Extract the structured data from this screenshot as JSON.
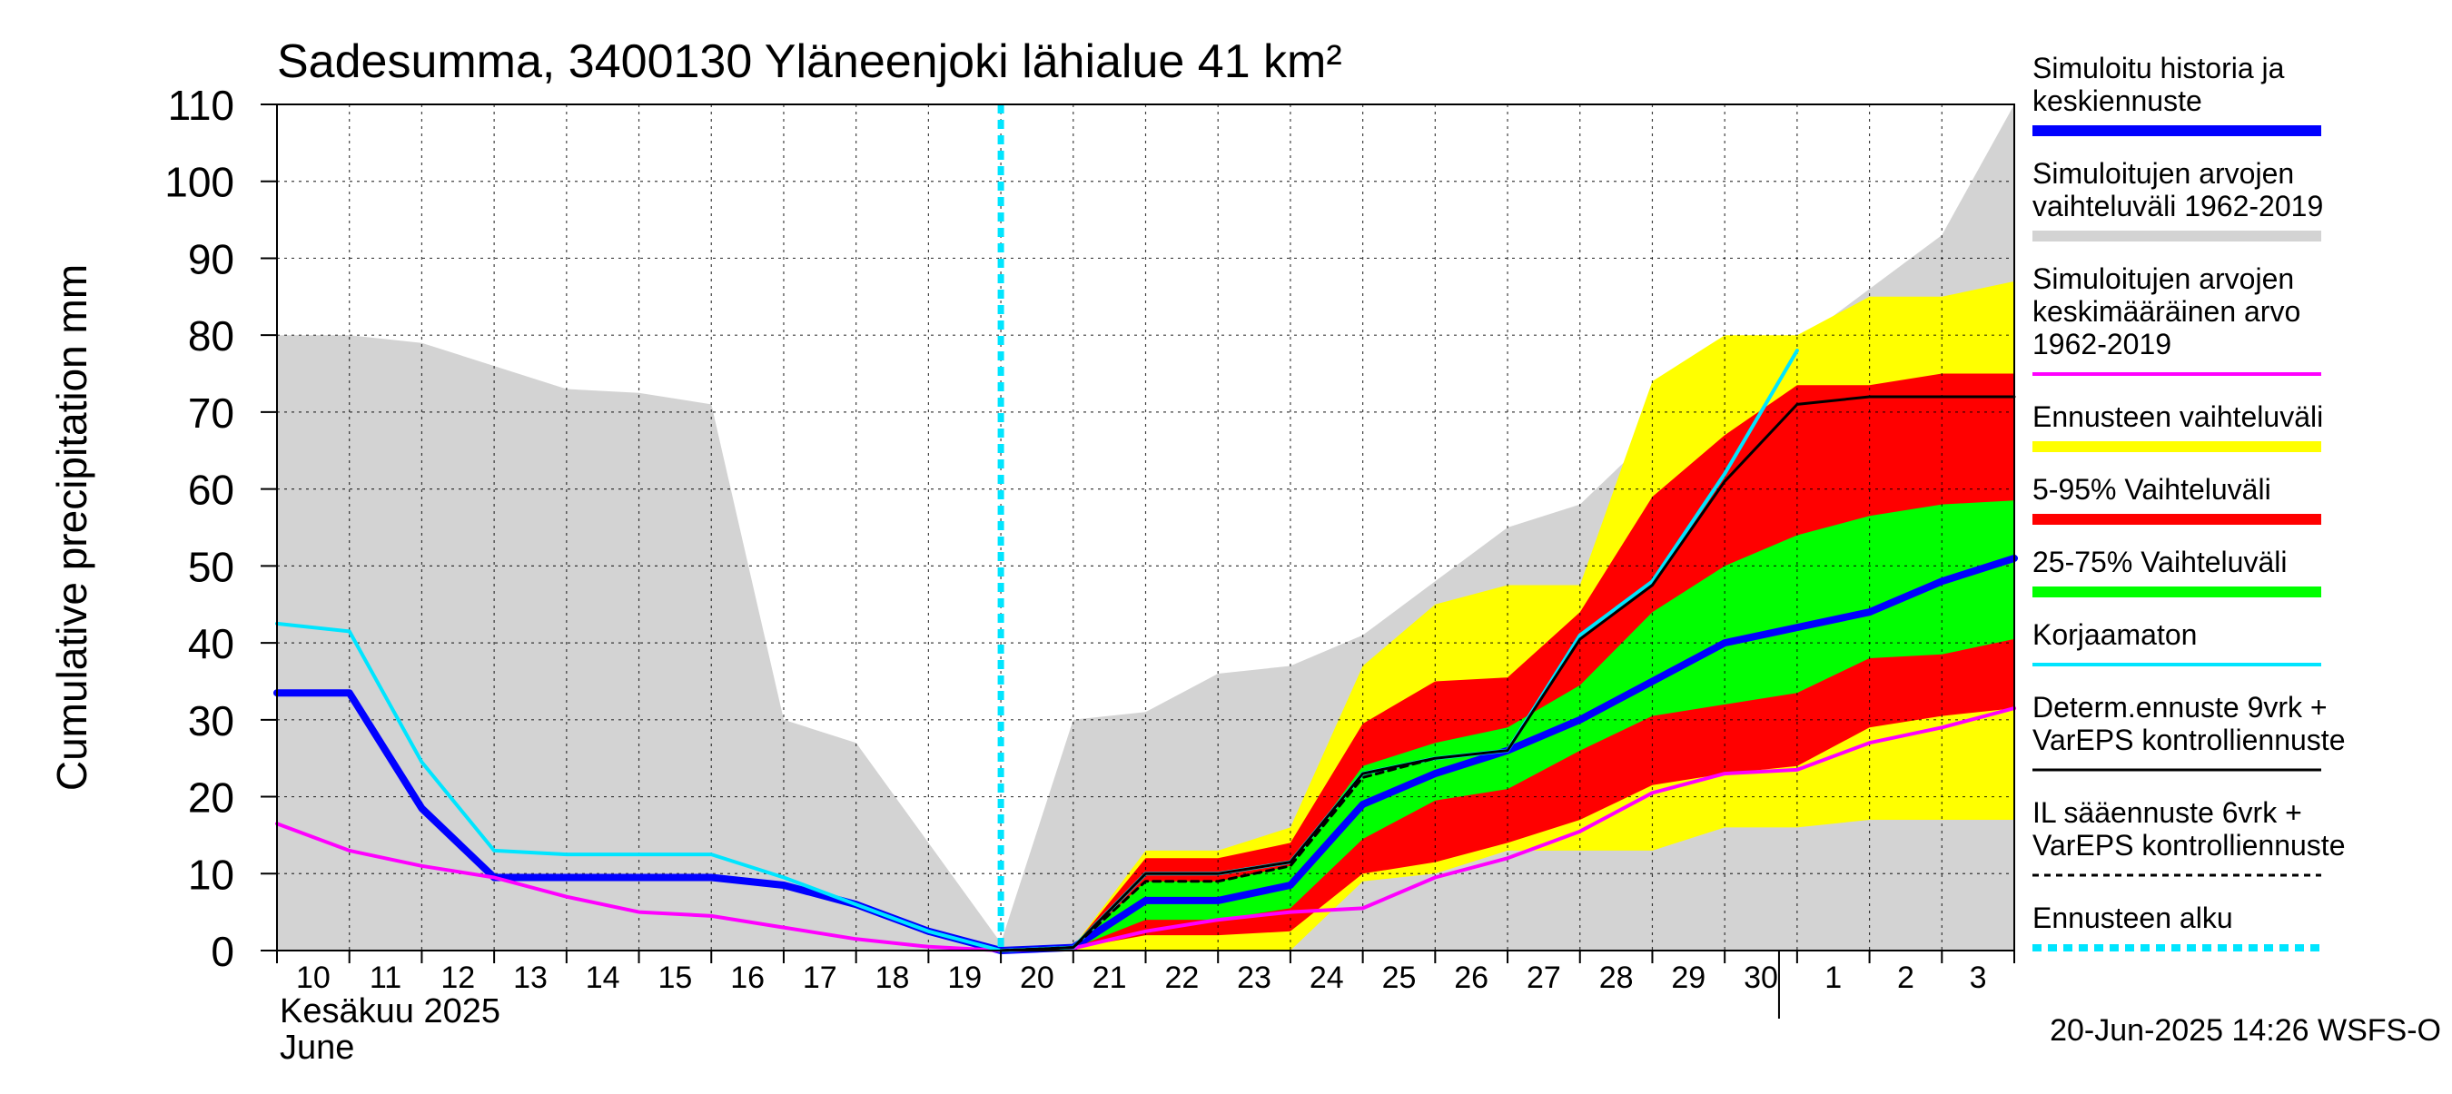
{
  "chart_data": {
    "type": "area",
    "title": "Sadesumma, 3400130 Yläneenjoki lähialue 41 km²",
    "ylabel": "Cumulative precipitation   mm",
    "ylim": [
      0,
      110
    ],
    "yticks": [
      0,
      10,
      20,
      30,
      40,
      50,
      60,
      70,
      80,
      90,
      100,
      110
    ],
    "xlim": [
      0,
      24
    ],
    "x_ticks": [
      {
        "x": 0,
        "label": "10"
      },
      {
        "x": 1,
        "label": "11"
      },
      {
        "x": 2,
        "label": "12"
      },
      {
        "x": 3,
        "label": "13"
      },
      {
        "x": 4,
        "label": "14"
      },
      {
        "x": 5,
        "label": "15"
      },
      {
        "x": 6,
        "label": "16"
      },
      {
        "x": 7,
        "label": "17"
      },
      {
        "x": 8,
        "label": "18"
      },
      {
        "x": 9,
        "label": "19"
      },
      {
        "x": 10,
        "label": "20"
      },
      {
        "x": 11,
        "label": "21"
      },
      {
        "x": 12,
        "label": "22"
      },
      {
        "x": 13,
        "label": "23"
      },
      {
        "x": 14,
        "label": "24"
      },
      {
        "x": 15,
        "label": "25"
      },
      {
        "x": 16,
        "label": "26"
      },
      {
        "x": 17,
        "label": "27"
      },
      {
        "x": 18,
        "label": "28"
      },
      {
        "x": 19,
        "label": "29"
      },
      {
        "x": 20,
        "label": "30"
      },
      {
        "x": 21,
        "label": "1"
      },
      {
        "x": 22,
        "label": "2"
      },
      {
        "x": 23,
        "label": "3"
      }
    ],
    "month_label_fi": "Kesäkuu   2025",
    "month_label_en": "June",
    "forecast_start_x": 10,
    "month_boundary_x": 20.75,
    "footer": "20-Jun-2025 14:26 WSFS-O",
    "bands": {
      "historical_range": {
        "x": [
          0,
          1,
          2,
          3,
          4,
          5,
          6,
          7,
          8,
          9,
          10,
          11,
          12,
          13,
          14,
          15,
          16,
          17,
          18,
          19,
          20,
          21,
          22,
          23,
          24
        ],
        "lower": [
          0,
          0,
          0,
          0,
          0,
          0,
          0,
          0,
          0,
          0,
          0,
          0,
          0,
          0,
          0,
          0,
          0,
          0,
          0,
          0,
          0,
          0,
          0,
          0,
          0
        ],
        "upper": [
          80,
          80,
          79,
          76,
          73,
          72.5,
          71,
          30,
          27,
          14,
          1,
          30,
          31,
          36,
          37,
          41,
          48,
          55,
          58,
          67,
          72,
          79,
          86,
          93,
          110
        ]
      },
      "ensemble_range": {
        "x": [
          11,
          12,
          13,
          14,
          15,
          16,
          17,
          18,
          19,
          20,
          21,
          22,
          23,
          24
        ],
        "lower": [
          0,
          0,
          0,
          0,
          9,
          10,
          13,
          13,
          13,
          16,
          16,
          17,
          17,
          17
        ],
        "upper": [
          0.5,
          13,
          13,
          16,
          37,
          45,
          47.5,
          47.5,
          74,
          80,
          80,
          85,
          85,
          87
        ]
      },
      "p5_95": {
        "x": [
          11,
          12,
          13,
          14,
          15,
          16,
          17,
          18,
          19,
          20,
          21,
          22,
          23,
          24
        ],
        "lower": [
          0.3,
          2,
          2,
          2.5,
          10,
          11.5,
          14,
          17,
          21.5,
          23,
          24,
          29,
          30.5,
          31.5
        ],
        "upper": [
          0.5,
          12,
          12,
          14,
          29.5,
          35,
          35.5,
          44,
          59,
          67,
          73.5,
          73.5,
          75,
          75
        ]
      },
      "p25_75": {
        "x": [
          11,
          12,
          13,
          14,
          15,
          16,
          17,
          18,
          19,
          20,
          21,
          22,
          23,
          24
        ],
        "lower": [
          0.3,
          4,
          4,
          5.5,
          14.5,
          19.5,
          21,
          26,
          30.5,
          32,
          33.5,
          38,
          38.5,
          40.5
        ],
        "upper": [
          0.4,
          9,
          9,
          11,
          24,
          27,
          29,
          34.5,
          44,
          50,
          54,
          56.5,
          58,
          58.5
        ]
      }
    },
    "series": [
      {
        "name": "Simuloitu historia ja keskiennuste",
        "color": "#0000ff",
        "width": 8,
        "x": [
          0,
          1,
          2,
          3,
          4,
          5,
          6,
          7,
          8,
          9,
          10,
          11,
          12,
          13,
          14,
          15,
          16,
          17,
          18,
          19,
          20,
          21,
          22,
          23,
          24
        ],
        "values": [
          33.5,
          33.5,
          18.5,
          9.5,
          9.5,
          9.5,
          9.5,
          8.5,
          6,
          2.5,
          0,
          0.4,
          6.5,
          6.5,
          8.5,
          19,
          23,
          26,
          30,
          35,
          40,
          42,
          44,
          48,
          51
        ]
      },
      {
        "name": "Simuloitujen arvojen keskimääräinen arvo 1962-2019",
        "color": "#ff00ff",
        "width": 4,
        "x": [
          0,
          1,
          2,
          3,
          4,
          5,
          6,
          7,
          8,
          9,
          10,
          11,
          12,
          13,
          14,
          15,
          16,
          17,
          18,
          19,
          20,
          21,
          22,
          23,
          24
        ],
        "values": [
          16.5,
          13,
          11,
          9.5,
          7,
          5,
          4.5,
          3,
          1.5,
          0.5,
          0,
          0.3,
          2.5,
          4,
          5,
          5.5,
          9.5,
          12,
          15.5,
          20.5,
          23,
          23.5,
          27,
          29,
          31.5
        ]
      },
      {
        "name": "Korjaamaton",
        "color": "#00e5ff",
        "width": 4,
        "x": [
          0,
          1,
          2,
          3,
          4,
          5,
          6,
          7,
          8,
          9,
          10,
          11,
          12,
          13,
          14,
          15,
          16,
          17,
          18,
          19,
          20,
          21
        ],
        "values": [
          42.5,
          41.5,
          24.5,
          13,
          12.5,
          12.5,
          12.5,
          9.5,
          6,
          2.5,
          0,
          0.4,
          10,
          10,
          11.5,
          23,
          25,
          26,
          41,
          48,
          62,
          78
        ]
      },
      {
        "name": "Determ.ennuste 9vrk + VarEPS kontrolliennuste",
        "color": "#000000",
        "width": 3,
        "x": [
          10,
          11,
          12,
          13,
          14,
          15,
          16,
          17,
          18,
          19,
          20,
          21,
          22,
          23,
          24
        ],
        "values": [
          0,
          0.4,
          10,
          10,
          11.5,
          23,
          25,
          26,
          40.5,
          47.5,
          61,
          71,
          72,
          72,
          72
        ]
      },
      {
        "name": "IL sääennuste 6vrk + VarEPS kontrolliennuste",
        "color": "#000000",
        "width": 3,
        "dashed": true,
        "x": [
          10,
          11,
          12,
          13,
          14,
          15,
          16
        ],
        "values": [
          0,
          0.4,
          9,
          9,
          11,
          22.5,
          25
        ]
      }
    ],
    "legend": {
      "placement": "right",
      "entries": [
        {
          "label_lines": [
            "Simuloitu historia ja",
            "keskiennuste"
          ],
          "color": "#0000ff",
          "kind": "thick"
        },
        {
          "label_lines": [
            "Simuloitujen arvojen",
            "vaihteluväli 1962-2019"
          ],
          "color": "#d3d3d3",
          "kind": "thick"
        },
        {
          "label_lines": [
            "Simuloitujen arvojen",
            "keskimääräinen arvo",
            "   1962-2019"
          ],
          "color": "#ff00ff",
          "kind": "medium"
        },
        {
          "label_lines": [
            "Ennusteen vaihteluväli"
          ],
          "color": "#ffff00",
          "kind": "thick"
        },
        {
          "label_lines": [
            "5-95% Vaihteluväli"
          ],
          "color": "#ff0000",
          "kind": "thick"
        },
        {
          "label_lines": [
            "25-75% Vaihteluväli"
          ],
          "color": "#00ff00",
          "kind": "thick"
        },
        {
          "label_lines": [
            "Korjaamaton"
          ],
          "color": "#00e5ff",
          "kind": "medium"
        },
        {
          "label_lines": [
            "Determ.ennuste 9vrk +",
            "VarEPS kontrolliennuste"
          ],
          "color": "#000000",
          "kind": "thin"
        },
        {
          "label_lines": [
            "IL sääennuste 6vrk  +",
            "  VarEPS kontrolliennuste"
          ],
          "color": "#000000",
          "kind": "dashed"
        },
        {
          "label_lines": [
            "Ennusteen alku"
          ],
          "color": "#00e5ff",
          "kind": "dotted"
        }
      ]
    }
  }
}
